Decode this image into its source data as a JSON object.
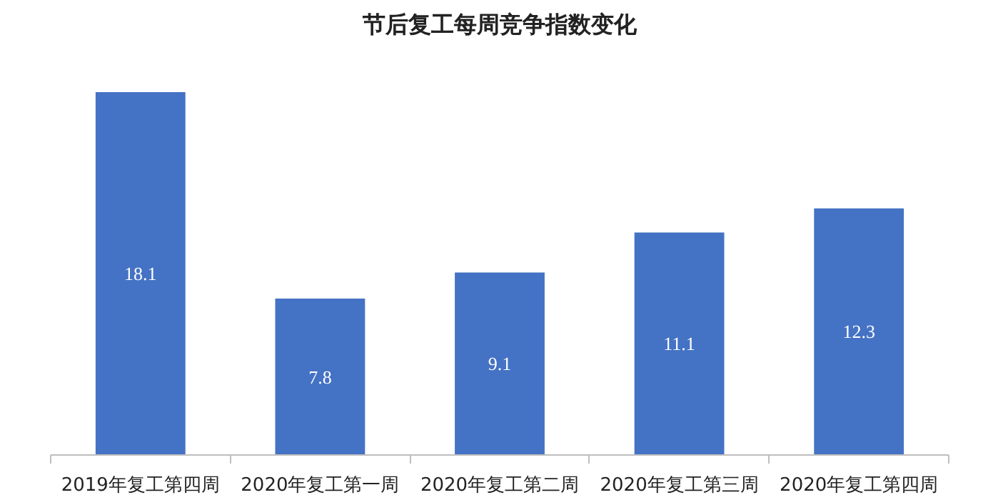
{
  "chart_data": {
    "type": "bar",
    "title": "节后复工每周竞争指数变化",
    "categories": [
      "2019年复工第四周",
      "2020年复工第一周",
      "2020年复工第二周",
      "2020年复工第三周",
      "2020年复工第四周"
    ],
    "values": [
      18.1,
      7.8,
      9.1,
      11.1,
      12.3
    ],
    "color": "#4472c4",
    "data_labels": true
  }
}
